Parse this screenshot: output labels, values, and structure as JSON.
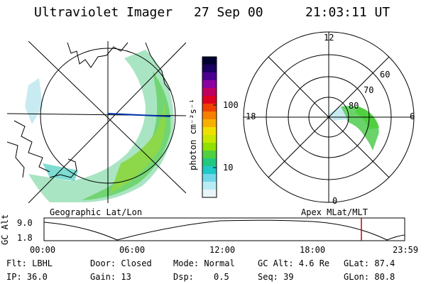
{
  "header": {
    "instrument": "Ultraviolet Imager",
    "date": "27 Sep 00",
    "time": "21:03:11 UT"
  },
  "colorbar": {
    "label": "photon cm⁻²s⁻¹",
    "ticks": [
      "100",
      "10"
    ],
    "colors": [
      "#000033",
      "#1a0060",
      "#4a0090",
      "#8a00a0",
      "#c00060",
      "#e00020",
      "#f04000",
      "#f58000",
      "#f8b000",
      "#f0e000",
      "#c8e800",
      "#90e000",
      "#50d040",
      "#20c880",
      "#20c8c8",
      "#70d8e8",
      "#b8ecf4",
      "#e8f6fa"
    ]
  },
  "geo_map": {
    "caption": "Geographic Lat/Lon"
  },
  "polar_map": {
    "caption": "Apex MLat/MLT",
    "mlt_labels": {
      "top": "12",
      "left": "18",
      "right": "6",
      "bottom": "0"
    },
    "lat_labels": [
      "60",
      "70",
      "80"
    ]
  },
  "altitude_plot": {
    "ylabel": "GC Alt",
    "y_ticks": [
      "9.0",
      "1.8"
    ],
    "x_ticks": [
      "00:00",
      "06:00",
      "12:00",
      "18:00",
      "23:59"
    ],
    "current_time_marker": "21:03"
  },
  "footer": {
    "row1": {
      "flt": "Flt: LBHL",
      "door": "Door: Closed",
      "mode": "Mode: Normal",
      "gcalt": "GC Alt: 4.6 Re",
      "glat": "GLat: 87.4"
    },
    "row2": {
      "ip": "IP: 36.0",
      "gain": "Gain: 13",
      "dsp_label": "Dsp:",
      "dsp_value": "0.5",
      "seq": "Seq: 39",
      "glon": "GLon: 80.8"
    }
  }
}
